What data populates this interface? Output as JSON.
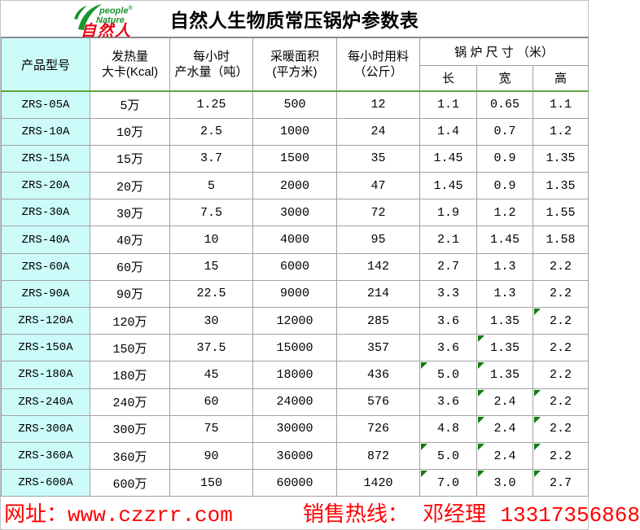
{
  "page": {
    "title": "自然人生物质常压锅炉参数表"
  },
  "logo": {
    "brand_en_line1": "people",
    "brand_en_reg": "®",
    "brand_en_line2": "Nature",
    "brand_cn": "自然人"
  },
  "table": {
    "headers": {
      "model": "产品型号",
      "heat_line1": "发热量",
      "heat_line2": "大卡(Kcal)",
      "water_line1": "每小时",
      "water_line2": "产水量（吨）",
      "area_line1": "采暖面积",
      "area_line2": "(平方米)",
      "fuel_line1": "每小时用料",
      "fuel_line2": "（公斤）",
      "size_group": "锅 炉 尺 寸 （米）",
      "length": "长",
      "width": "宽",
      "height": "高"
    },
    "rows": [
      {
        "model": "ZRS-05A",
        "heat": "5万",
        "water": "1.25",
        "area": "500",
        "fuel": "12",
        "len": "1.1",
        "width": "0.65",
        "height": "1.1",
        "marks": []
      },
      {
        "model": "ZRS-10A",
        "heat": "10万",
        "water": "2.5",
        "area": "1000",
        "fuel": "24",
        "len": "1.4",
        "width": "0.7",
        "height": "1.2",
        "marks": []
      },
      {
        "model": "ZRS-15A",
        "heat": "15万",
        "water": "3.7",
        "area": "1500",
        "fuel": "35",
        "len": "1.45",
        "width": "0.9",
        "height": "1.35",
        "marks": []
      },
      {
        "model": "ZRS-20A",
        "heat": "20万",
        "water": "5",
        "area": "2000",
        "fuel": "47",
        "len": "1.45",
        "width": "0.9",
        "height": "1.35",
        "marks": []
      },
      {
        "model": "ZRS-30A",
        "heat": "30万",
        "water": "7.5",
        "area": "3000",
        "fuel": "72",
        "len": "1.9",
        "width": "1.2",
        "height": "1.55",
        "marks": []
      },
      {
        "model": "ZRS-40A",
        "heat": "40万",
        "water": "10",
        "area": "4000",
        "fuel": "95",
        "len": "2.1",
        "width": "1.45",
        "height": "1.58",
        "marks": []
      },
      {
        "model": "ZRS-60A",
        "heat": "60万",
        "water": "15",
        "area": "6000",
        "fuel": "142",
        "len": "2.7",
        "width": "1.3",
        "height": "2.2",
        "marks": []
      },
      {
        "model": "ZRS-90A",
        "heat": "90万",
        "water": "22.5",
        "area": "9000",
        "fuel": "214",
        "len": "3.3",
        "width": "1.3",
        "height": "2.2",
        "marks": []
      },
      {
        "model": "ZRS-120A",
        "heat": "120万",
        "water": "30",
        "area": "12000",
        "fuel": "285",
        "len": "3.6",
        "width": "1.35",
        "height": "2.2",
        "marks": [
          "height"
        ]
      },
      {
        "model": "ZRS-150A",
        "heat": "150万",
        "water": "37.5",
        "area": "15000",
        "fuel": "357",
        "len": "3.6",
        "width": "1.35",
        "height": "2.2",
        "marks": [
          "width"
        ]
      },
      {
        "model": "ZRS-180A",
        "heat": "180万",
        "water": "45",
        "area": "18000",
        "fuel": "436",
        "len": "5.0",
        "width": "1.35",
        "height": "2.2",
        "marks": [
          "len",
          "width"
        ]
      },
      {
        "model": "ZRS-240A",
        "heat": "240万",
        "water": "60",
        "area": "24000",
        "fuel": "576",
        "len": "3.6",
        "width": "2.4",
        "height": "2.2",
        "marks": [
          "width",
          "height"
        ]
      },
      {
        "model": "ZRS-300A",
        "heat": "300万",
        "water": "75",
        "area": "30000",
        "fuel": "726",
        "len": "4.8",
        "width": "2.4",
        "height": "2.2",
        "marks": [
          "width",
          "height"
        ]
      },
      {
        "model": "ZRS-360A",
        "heat": "360万",
        "water": "90",
        "area": "36000",
        "fuel": "872",
        "len": "5.0",
        "width": "2.4",
        "height": "2.2",
        "marks": [
          "len",
          "width",
          "height"
        ]
      },
      {
        "model": "ZRS-600A",
        "heat": "600万",
        "water": "150",
        "area": "60000",
        "fuel": "1420",
        "len": "7.0",
        "width": "3.0",
        "height": "2.7",
        "marks": [
          "len",
          "width",
          "height"
        ]
      }
    ]
  },
  "footer": {
    "website_label": "网址：",
    "website": "www.czzrr.com",
    "hotline_label": "销售热线：",
    "contact_person": "邓经理",
    "phone": "13317356868"
  },
  "colors": {
    "first_column_bg": "#ccfbfa",
    "header_divider_green": "#5fa53a",
    "corner_mark_green": "#107c10",
    "footer_red": "#ff0000",
    "brand_green": "#18952c",
    "brand_red": "#e60012"
  }
}
